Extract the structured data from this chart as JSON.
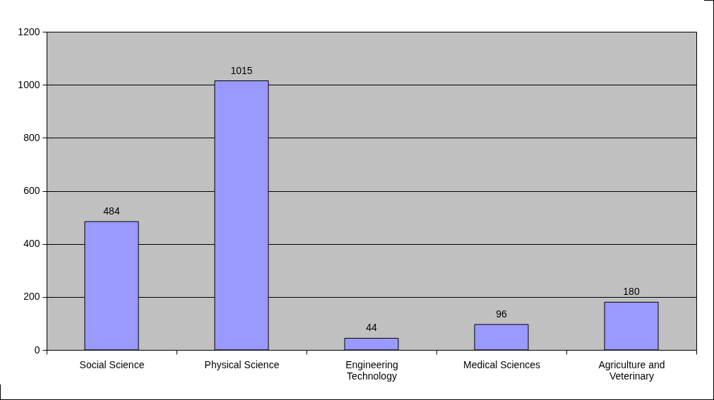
{
  "chart_data": {
    "type": "bar",
    "categories": [
      "Social Science",
      "Physical Science",
      "Engineering Technology",
      "Medical Sciences",
      "Agriculture and Veterinary"
    ],
    "values": [
      484,
      1015,
      44,
      96,
      180
    ],
    "color": "#9999ff",
    "ylim": [
      0,
      1200
    ],
    "yticks": [
      0,
      200,
      400,
      600,
      800,
      1000,
      1200
    ],
    "grid": "y",
    "data_labels": true
  }
}
